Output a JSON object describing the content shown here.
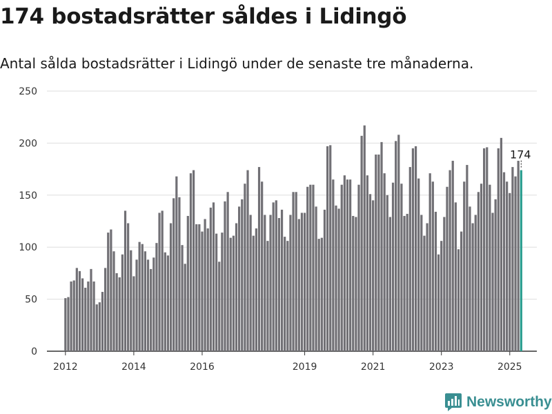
{
  "header": {
    "title": "174 bostadsrätter såldes i Lidingö",
    "subtitle": "Antal sålda bostadsrätter i Lidingö under de senaste tre månaderna."
  },
  "brand": {
    "name": "Newsworthy",
    "icon": "newsworthy-logo-icon",
    "color": "#3a8f92"
  },
  "chart_data": {
    "type": "bar",
    "title": "174 bostadsrätter såldes i Lidingö",
    "subtitle": "Antal sålda bostadsrätter i Lidingö under de senaste tre månaderna.",
    "xlabel": "",
    "ylabel": "",
    "ylim": [
      0,
      250
    ],
    "yticks": [
      "0",
      "50",
      "100",
      "150",
      "200",
      "250"
    ],
    "grid": true,
    "bar_color": "#717075",
    "highlight_color": "#2a9d8f",
    "axis_start": "2011-07",
    "axis_end": "2025-11",
    "xticks": [
      {
        "label": "2012",
        "date": "2012-01"
      },
      {
        "label": "2014",
        "date": "2014-01"
      },
      {
        "label": "2016",
        "date": "2016-01"
      },
      {
        "label": "2019",
        "date": "2019-01"
      },
      {
        "label": "2021",
        "date": "2021-01"
      },
      {
        "label": "2023",
        "date": "2023-01"
      },
      {
        "label": "2025",
        "date": "2025-01"
      }
    ],
    "start_month": "2012-01",
    "values": [
      51,
      52,
      67,
      68,
      80,
      77,
      70,
      61,
      67,
      79,
      67,
      45,
      47,
      57,
      80,
      114,
      117,
      96,
      75,
      71,
      93,
      135,
      123,
      97,
      72,
      88,
      105,
      103,
      96,
      88,
      79,
      90,
      104,
      133,
      135,
      95,
      92,
      123,
      147,
      168,
      148,
      102,
      84,
      130,
      171,
      174,
      122,
      122,
      115,
      127,
      118,
      138,
      143,
      113,
      86,
      114,
      144,
      153,
      109,
      111,
      123,
      139,
      146,
      161,
      174,
      131,
      111,
      118,
      177,
      163,
      131,
      106,
      131,
      143,
      145,
      128,
      136,
      110,
      106,
      131,
      153,
      153,
      127,
      133,
      133,
      158,
      160,
      160,
      139,
      108,
      109,
      136,
      197,
      198,
      165,
      140,
      137,
      160,
      169,
      165,
      165,
      130,
      129,
      160,
      207,
      217,
      169,
      151,
      145,
      189,
      189,
      201,
      171,
      150,
      129,
      162,
      202,
      208,
      161,
      130,
      132,
      177,
      195,
      197,
      166,
      131,
      111,
      123,
      171,
      163,
      134,
      93,
      106,
      129,
      158,
      174,
      183,
      143,
      98,
      115,
      163,
      179,
      139,
      123,
      131,
      153,
      161,
      195,
      196,
      160,
      133,
      146,
      195,
      205,
      172,
      163,
      152,
      177,
      168,
      183,
      174
    ],
    "highlight": {
      "date": "2025-05",
      "value": 174,
      "label": "174"
    }
  }
}
